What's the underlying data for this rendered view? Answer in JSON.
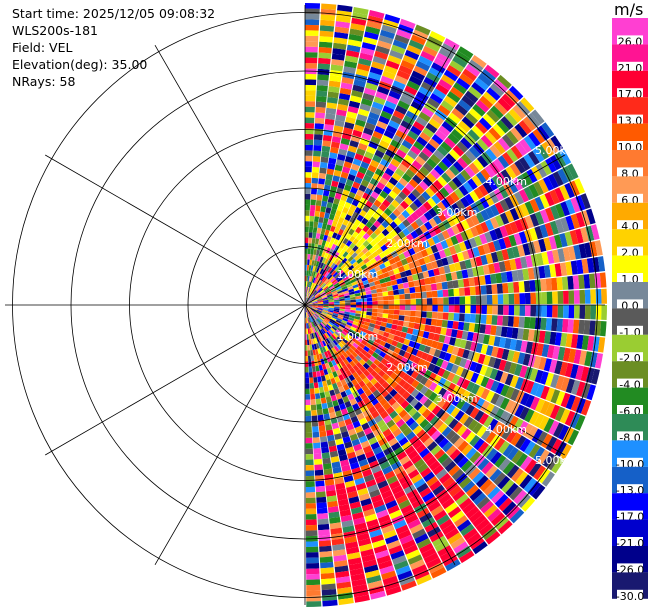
{
  "info": {
    "start_time": "Start time: 2025/12/05 09:08:32",
    "instrument": "WLS200s-181",
    "field": "Field: VEL",
    "elevation": "Elevation(deg): 35.00",
    "nrays": "NRays: 58"
  },
  "rings": [
    "1.00km",
    "2.00km",
    "3.00km",
    "4.00km",
    "5.00km"
  ],
  "colorbar": {
    "unit": "m/s",
    "ticks": [
      "26.0",
      "21.0",
      "17.0",
      "13.0",
      "10.0",
      "8.0",
      "6.0",
      "4.0",
      "2.0",
      "1.0",
      "0.0",
      "-1.0",
      "-2.0",
      "-4.0",
      "-6.0",
      "-8.0",
      "-10.0",
      "-13.0",
      "-17.0",
      "-21.0",
      "-26.0",
      "-30.0"
    ],
    "colors": [
      "#ff3fd2",
      "#ff1493",
      "#ff0033",
      "#ff2a1a",
      "#ff5a00",
      "#ff7a30",
      "#ff9a55",
      "#ffaa00",
      "#ffd200",
      "#ffff00",
      "#778899",
      "#5a5a5a",
      "#9acd32",
      "#6b8e23",
      "#228b22",
      "#2e8b57",
      "#1e90ff",
      "#1560c8",
      "#0000ff",
      "#0000cd",
      "#00008b",
      "#191970"
    ]
  }
}
